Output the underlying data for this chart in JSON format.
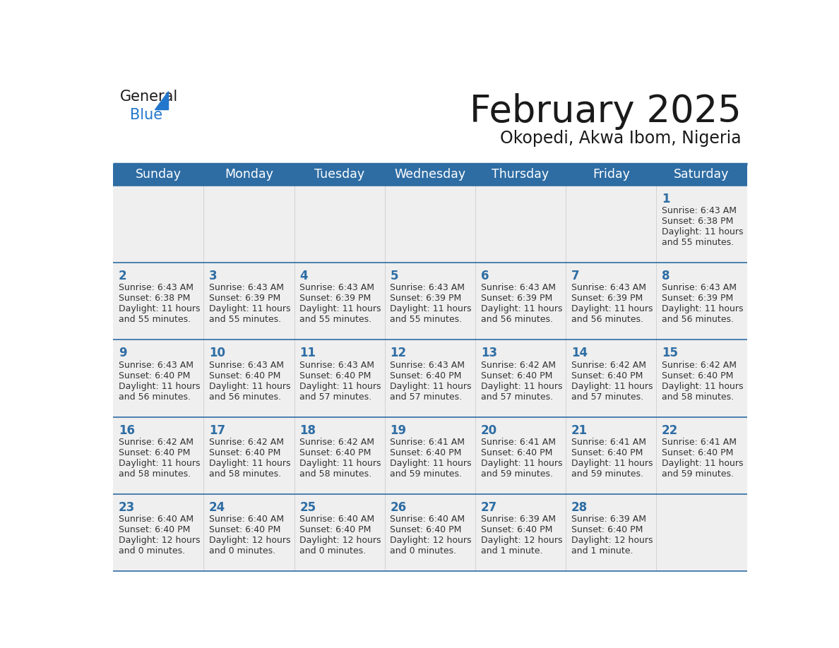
{
  "title": "February 2025",
  "subtitle": "Okopedi, Akwa Ibom, Nigeria",
  "days_of_week": [
    "Sunday",
    "Monday",
    "Tuesday",
    "Wednesday",
    "Thursday",
    "Friday",
    "Saturday"
  ],
  "header_bg": "#2e6da4",
  "header_text": "#ffffff",
  "row_bg": "#efefef",
  "border_color": "#2e6da4",
  "day_number_color": "#2e6da4",
  "info_text_color": "#333333",
  "title_color": "#1a1a1a",
  "subtitle_color": "#1a1a1a",
  "calendar": [
    [
      null,
      null,
      null,
      null,
      null,
      null,
      {
        "day": 1,
        "sunrise": "6:43 AM",
        "sunset": "6:38 PM",
        "daylight": "11 hours",
        "daylight2": "and 55 minutes."
      }
    ],
    [
      {
        "day": 2,
        "sunrise": "6:43 AM",
        "sunset": "6:38 PM",
        "daylight": "11 hours",
        "daylight2": "and 55 minutes."
      },
      {
        "day": 3,
        "sunrise": "6:43 AM",
        "sunset": "6:39 PM",
        "daylight": "11 hours",
        "daylight2": "and 55 minutes."
      },
      {
        "day": 4,
        "sunrise": "6:43 AM",
        "sunset": "6:39 PM",
        "daylight": "11 hours",
        "daylight2": "and 55 minutes."
      },
      {
        "day": 5,
        "sunrise": "6:43 AM",
        "sunset": "6:39 PM",
        "daylight": "11 hours",
        "daylight2": "and 55 minutes."
      },
      {
        "day": 6,
        "sunrise": "6:43 AM",
        "sunset": "6:39 PM",
        "daylight": "11 hours",
        "daylight2": "and 56 minutes."
      },
      {
        "day": 7,
        "sunrise": "6:43 AM",
        "sunset": "6:39 PM",
        "daylight": "11 hours",
        "daylight2": "and 56 minutes."
      },
      {
        "day": 8,
        "sunrise": "6:43 AM",
        "sunset": "6:39 PM",
        "daylight": "11 hours",
        "daylight2": "and 56 minutes."
      }
    ],
    [
      {
        "day": 9,
        "sunrise": "6:43 AM",
        "sunset": "6:40 PM",
        "daylight": "11 hours",
        "daylight2": "and 56 minutes."
      },
      {
        "day": 10,
        "sunrise": "6:43 AM",
        "sunset": "6:40 PM",
        "daylight": "11 hours",
        "daylight2": "and 56 minutes."
      },
      {
        "day": 11,
        "sunrise": "6:43 AM",
        "sunset": "6:40 PM",
        "daylight": "11 hours",
        "daylight2": "and 57 minutes."
      },
      {
        "day": 12,
        "sunrise": "6:43 AM",
        "sunset": "6:40 PM",
        "daylight": "11 hours",
        "daylight2": "and 57 minutes."
      },
      {
        "day": 13,
        "sunrise": "6:42 AM",
        "sunset": "6:40 PM",
        "daylight": "11 hours",
        "daylight2": "and 57 minutes."
      },
      {
        "day": 14,
        "sunrise": "6:42 AM",
        "sunset": "6:40 PM",
        "daylight": "11 hours",
        "daylight2": "and 57 minutes."
      },
      {
        "day": 15,
        "sunrise": "6:42 AM",
        "sunset": "6:40 PM",
        "daylight": "11 hours",
        "daylight2": "and 58 minutes."
      }
    ],
    [
      {
        "day": 16,
        "sunrise": "6:42 AM",
        "sunset": "6:40 PM",
        "daylight": "11 hours",
        "daylight2": "and 58 minutes."
      },
      {
        "day": 17,
        "sunrise": "6:42 AM",
        "sunset": "6:40 PM",
        "daylight": "11 hours",
        "daylight2": "and 58 minutes."
      },
      {
        "day": 18,
        "sunrise": "6:42 AM",
        "sunset": "6:40 PM",
        "daylight": "11 hours",
        "daylight2": "and 58 minutes."
      },
      {
        "day": 19,
        "sunrise": "6:41 AM",
        "sunset": "6:40 PM",
        "daylight": "11 hours",
        "daylight2": "and 59 minutes."
      },
      {
        "day": 20,
        "sunrise": "6:41 AM",
        "sunset": "6:40 PM",
        "daylight": "11 hours",
        "daylight2": "and 59 minutes."
      },
      {
        "day": 21,
        "sunrise": "6:41 AM",
        "sunset": "6:40 PM",
        "daylight": "11 hours",
        "daylight2": "and 59 minutes."
      },
      {
        "day": 22,
        "sunrise": "6:41 AM",
        "sunset": "6:40 PM",
        "daylight": "11 hours",
        "daylight2": "and 59 minutes."
      }
    ],
    [
      {
        "day": 23,
        "sunrise": "6:40 AM",
        "sunset": "6:40 PM",
        "daylight": "12 hours",
        "daylight2": "and 0 minutes."
      },
      {
        "day": 24,
        "sunrise": "6:40 AM",
        "sunset": "6:40 PM",
        "daylight": "12 hours",
        "daylight2": "and 0 minutes."
      },
      {
        "day": 25,
        "sunrise": "6:40 AM",
        "sunset": "6:40 PM",
        "daylight": "12 hours",
        "daylight2": "and 0 minutes."
      },
      {
        "day": 26,
        "sunrise": "6:40 AM",
        "sunset": "6:40 PM",
        "daylight": "12 hours",
        "daylight2": "and 0 minutes."
      },
      {
        "day": 27,
        "sunrise": "6:39 AM",
        "sunset": "6:40 PM",
        "daylight": "12 hours",
        "daylight2": "and 1 minute."
      },
      {
        "day": 28,
        "sunrise": "6:39 AM",
        "sunset": "6:40 PM",
        "daylight": "12 hours",
        "daylight2": "and 1 minute."
      },
      null
    ]
  ]
}
